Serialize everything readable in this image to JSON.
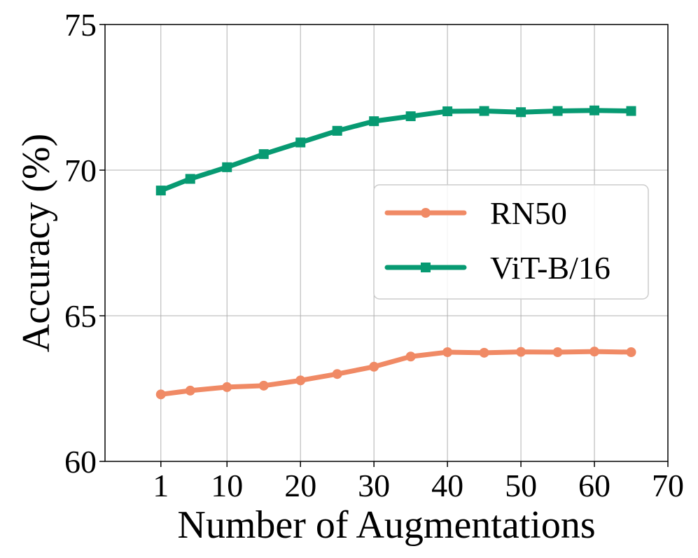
{
  "chart_data": {
    "type": "line",
    "title": "",
    "xlabel": "Number of Augmentations",
    "ylabel": "Accuracy (%)",
    "xlim": [
      -6.6,
      70
    ],
    "ylim": [
      60,
      75
    ],
    "xticks": [
      1,
      10,
      20,
      30,
      40,
      50,
      60,
      70
    ],
    "yticks": [
      60,
      65,
      70,
      75
    ],
    "grid": true,
    "legend_position": "center-right",
    "x": [
      1,
      5,
      10,
      15,
      20,
      25,
      30,
      35,
      40,
      45,
      50,
      55,
      60,
      65
    ],
    "series": [
      {
        "name": "RN50",
        "color": "#f08a65",
        "marker": "circle",
        "values": [
          62.3,
          62.43,
          62.55,
          62.6,
          62.78,
          63.0,
          63.25,
          63.6,
          63.75,
          63.73,
          63.76,
          63.75,
          63.77,
          63.75
        ]
      },
      {
        "name": "ViT-B/16",
        "color": "#079a72",
        "marker": "square",
        "values": [
          69.3,
          69.7,
          70.1,
          70.55,
          70.95,
          71.35,
          71.68,
          71.85,
          72.02,
          72.03,
          71.99,
          72.03,
          72.05,
          72.03
        ]
      }
    ]
  }
}
